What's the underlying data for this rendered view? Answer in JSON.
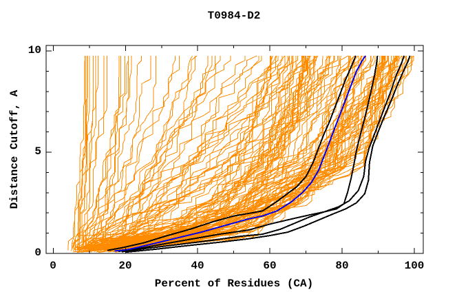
{
  "title": "T0984-D2",
  "colors": {
    "background": "#FFFFFF",
    "frame": "#000000",
    "orange_models": "#FF8C00",
    "highlight_blue": "#0000EE",
    "highlight_black": "#000000",
    "text": "#000000"
  },
  "chart_data": {
    "type": "line",
    "title": "T0984-D2",
    "xlabel": "Percent of Residues (CA)",
    "ylabel": "Distance Cutoff, A",
    "xlim": [
      -2,
      102.5
    ],
    "ylim": [
      0,
      10.27
    ],
    "grid": false,
    "legend": "none",
    "x_major_ticks": [
      0,
      20,
      40,
      60,
      80,
      100
    ],
    "x_tick_labels": [
      "0",
      "20",
      "40",
      "60",
      "80",
      "100"
    ],
    "x_minor_ticks": [
      10,
      30,
      50,
      70,
      90
    ],
    "y_major_ticks": [
      0,
      5,
      10
    ],
    "y_tick_labels": [
      "0",
      "5",
      "10"
    ],
    "y_minor_ticks": [
      1,
      2,
      3,
      4,
      6,
      7,
      8,
      9
    ],
    "series": [
      {
        "name": "highlighted-model-black-1",
        "color": "#000000",
        "width": 2,
        "points": [
          [
            15,
            0.15
          ],
          [
            19,
            0.28
          ],
          [
            25,
            0.52
          ],
          [
            31,
            0.85
          ],
          [
            38,
            1.2
          ],
          [
            44,
            1.55
          ],
          [
            50,
            1.85
          ],
          [
            55,
            2.0
          ],
          [
            58,
            2.1
          ],
          [
            61,
            2.45
          ],
          [
            64.5,
            2.9
          ],
          [
            67.5,
            3.3
          ],
          [
            70,
            3.8
          ],
          [
            72,
            4.5
          ],
          [
            73.5,
            5.2
          ],
          [
            75,
            5.9
          ],
          [
            76.5,
            6.5
          ],
          [
            78,
            7.2
          ],
          [
            79.5,
            7.9
          ],
          [
            81,
            8.6
          ],
          [
            82.5,
            9.2
          ],
          [
            83.8,
            9.76
          ]
        ]
      },
      {
        "name": "highlighted-model-black-2",
        "color": "#000000",
        "width": 2,
        "points": [
          [
            18,
            0.1
          ],
          [
            23,
            0.22
          ],
          [
            30,
            0.45
          ],
          [
            38,
            0.7
          ],
          [
            46,
            0.95
          ],
          [
            54,
            1.15
          ],
          [
            60,
            1.45
          ],
          [
            66,
            1.7
          ],
          [
            71,
            1.9
          ],
          [
            75,
            2.05
          ],
          [
            78.5,
            2.2
          ],
          [
            80.5,
            2.45
          ],
          [
            81.5,
            3.0
          ],
          [
            82.5,
            3.7
          ],
          [
            83.3,
            4.4
          ],
          [
            84,
            5.1
          ],
          [
            85,
            5.8
          ],
          [
            86,
            6.5
          ],
          [
            87,
            7.2
          ],
          [
            88,
            8.0
          ],
          [
            89,
            8.8
          ],
          [
            89.5,
            9.3
          ],
          [
            89.8,
            9.76
          ]
        ]
      },
      {
        "name": "highlighted-model-black-3",
        "color": "#000000",
        "width": 2,
        "points": [
          [
            19,
            0.08
          ],
          [
            26,
            0.25
          ],
          [
            35,
            0.45
          ],
          [
            44,
            0.65
          ],
          [
            52,
            0.85
          ],
          [
            58,
            0.95
          ],
          [
            63,
            1.2
          ],
          [
            67,
            1.5
          ],
          [
            71,
            1.8
          ],
          [
            75,
            2.05
          ],
          [
            79,
            2.3
          ],
          [
            82,
            2.6
          ],
          [
            84.5,
            3.1
          ],
          [
            86,
            3.8
          ],
          [
            86.5,
            4.55
          ],
          [
            87.5,
            5.2
          ],
          [
            89,
            5.9
          ],
          [
            90.5,
            6.6
          ],
          [
            92,
            7.3
          ],
          [
            93.5,
            8.0
          ],
          [
            95,
            8.8
          ],
          [
            96.5,
            9.4
          ],
          [
            97.2,
            9.76
          ]
        ]
      },
      {
        "name": "highlighted-model-black-4",
        "color": "#000000",
        "width": 2,
        "points": [
          [
            20,
            0.06
          ],
          [
            28,
            0.2
          ],
          [
            37,
            0.38
          ],
          [
            46,
            0.55
          ],
          [
            54,
            0.72
          ],
          [
            60,
            0.88
          ],
          [
            65,
            1.05
          ],
          [
            69.5,
            1.35
          ],
          [
            73.5,
            1.65
          ],
          [
            77.5,
            1.95
          ],
          [
            81,
            2.2
          ],
          [
            84,
            2.5
          ],
          [
            86.3,
            2.95
          ],
          [
            87.3,
            3.6
          ],
          [
            87.6,
            4.5
          ],
          [
            88.5,
            5.3
          ],
          [
            90,
            6.0
          ],
          [
            91.8,
            6.8
          ],
          [
            93.5,
            7.5
          ],
          [
            95.3,
            8.3
          ],
          [
            97,
            9.0
          ],
          [
            98.3,
            9.5
          ],
          [
            98.8,
            9.76
          ]
        ]
      },
      {
        "name": "highlighted-model-blue",
        "color": "#0000EE",
        "width": 2,
        "points": [
          [
            17,
            0.12
          ],
          [
            21,
            0.2
          ],
          [
            27,
            0.45
          ],
          [
            34,
            0.75
          ],
          [
            41,
            1.05
          ],
          [
            48,
            1.4
          ],
          [
            54,
            1.7
          ],
          [
            58,
            1.85
          ],
          [
            62,
            2.1
          ],
          [
            66,
            2.55
          ],
          [
            69,
            3.0
          ],
          [
            71.5,
            3.5
          ],
          [
            73.5,
            4.1
          ],
          [
            75,
            4.8
          ],
          [
            76.5,
            5.5
          ],
          [
            78,
            6.2
          ],
          [
            79.5,
            6.9
          ],
          [
            81,
            7.6
          ],
          [
            82.5,
            8.3
          ],
          [
            84,
            9.0
          ],
          [
            85.5,
            9.5
          ],
          [
            86.5,
            9.76
          ]
        ]
      }
    ],
    "orange_ensemble": {
      "name": "server-model-curves",
      "color": "#FF8C00",
      "width": 1,
      "count": 140,
      "seed": 7,
      "cutoff_range": [
        0.05,
        9.76
      ],
      "start_percent_range": [
        4,
        18
      ],
      "top_percent_range": [
        8,
        101
      ],
      "note": "Approximately 140 thin orange monotone curves (percent of residues vs distance cutoff); ensemble spans from very poor models rising near 5-15% to best models reaching ~99-101% at cutoff 9.76"
    }
  }
}
